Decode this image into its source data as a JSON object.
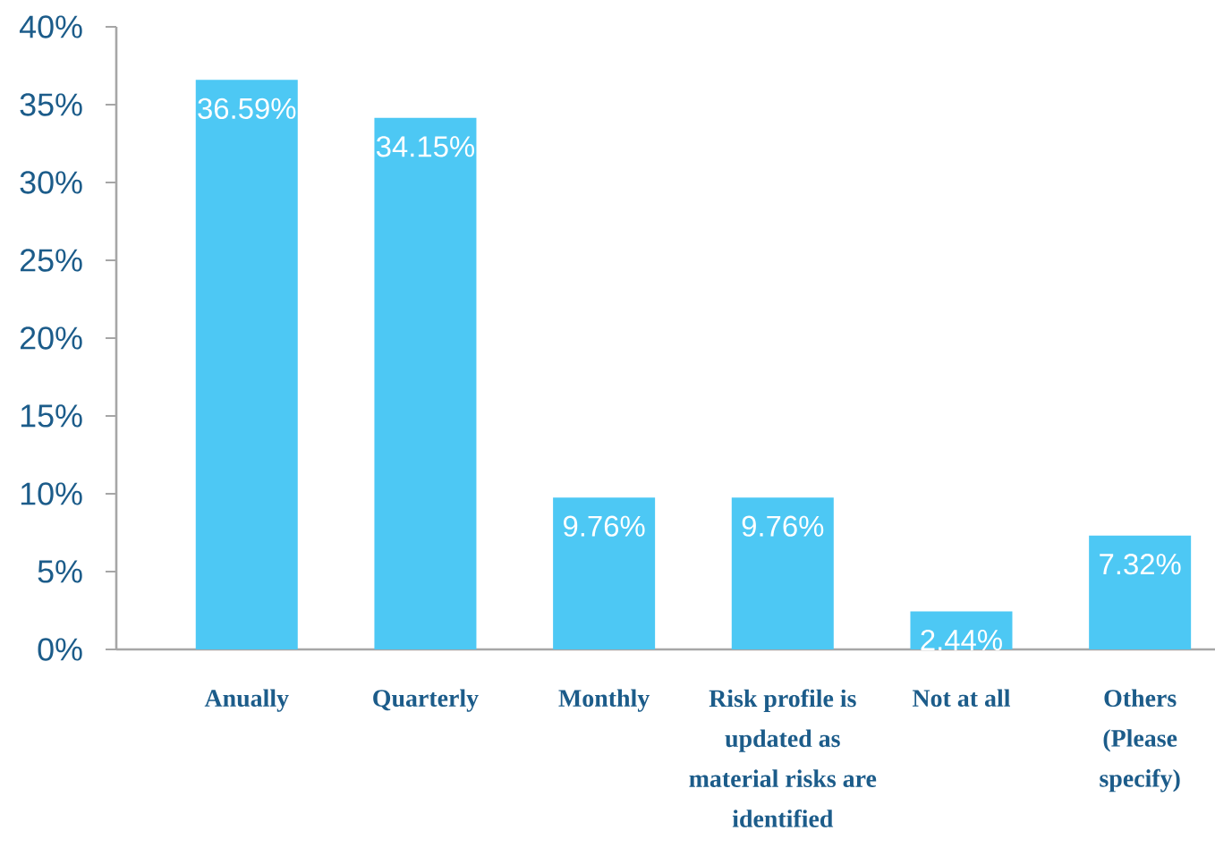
{
  "chart_data": {
    "type": "bar",
    "categories": [
      "Anually",
      "Quarterly",
      "Monthly",
      "Risk profile is updated as material risks are identified",
      "Not at all",
      "Others (Please specify)"
    ],
    "values": [
      36.59,
      34.15,
      9.76,
      9.76,
      2.44,
      7.32
    ],
    "value_labels": [
      "36.59%",
      "34.15%",
      "9.76%",
      "9.76%",
      "2.44%",
      "7.32%"
    ],
    "color": "#4dc8f4",
    "ylim": [
      0,
      40
    ],
    "yticks": [
      {
        "value": 0,
        "label": "0%"
      },
      {
        "value": 5,
        "label": "5%"
      },
      {
        "value": 10,
        "label": "10%"
      },
      {
        "value": 15,
        "label": "15%"
      },
      {
        "value": 20,
        "label": "20%"
      },
      {
        "value": 25,
        "label": "25%"
      },
      {
        "value": 30,
        "label": "30%"
      },
      {
        "value": 35,
        "label": "35%"
      },
      {
        "value": 40,
        "label": "40%"
      }
    ]
  }
}
